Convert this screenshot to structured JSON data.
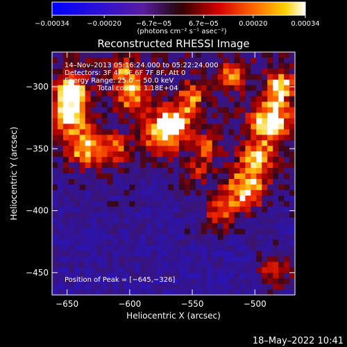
{
  "chart_data": {
    "type": "heatmap",
    "title": "Reconstructed RHESSI Image",
    "xlabel": "Heliocentric X (arcsec)",
    "ylabel": "Heliocentric Y (arcsec)",
    "xlim": [
      -662,
      -468
    ],
    "ylim": [
      -468,
      -272
    ],
    "x_ticks": [
      -650,
      -600,
      -550,
      -500
    ],
    "y_ticks": [
      -300,
      -350,
      -400,
      -450
    ],
    "x_tick_labels": [
      "−650",
      "−600",
      "−550",
      "−500"
    ],
    "y_tick_labels": [
      "−300",
      "−350",
      "−400",
      "−450"
    ],
    "colorbar": {
      "min": -0.00034,
      "max": 0.00034,
      "ticks": [
        -0.00034,
        -0.0002,
        -6.7e-05,
        6.7e-05,
        0.0002,
        0.00034
      ],
      "tick_labels": [
        "−0.00034",
        "−0.00020",
        "−6.7e−05",
        "6.7e−05",
        "0.00020",
        "0.00034"
      ],
      "unit_text": "(photons cm⁻² s⁻¹ asec⁻²)"
    },
    "annotations": [
      "14–Nov–2013 05:16:24.000 to 05:22:24.000",
      "Detectors: 3F 4F 5F 6F 7F 8F, Att 0",
      "Energy Range: 25.0 − 50.0 keV",
      "Clean      Total counts: 1.18E+04",
      "Position of Peak = [−645,−326]"
    ],
    "peak": {
      "x": -645,
      "y": -326
    },
    "footer_timestamp": "18–May–2022 10:41",
    "grid": false,
    "legend": "colorbar-top",
    "colors": {
      "background": "#000000",
      "axes": "#ffffff",
      "text": "#ffffff"
    }
  }
}
